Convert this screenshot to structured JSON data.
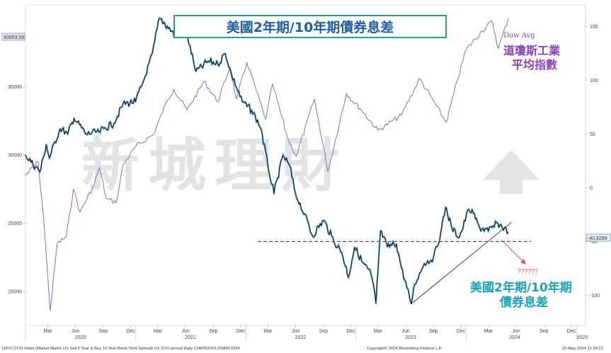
{
  "title": "美國2年期/10年期債券息差",
  "watermark": "新城理財",
  "left_axis_tag": "40003.59",
  "right_axis_tag": "-40.8289",
  "dow_label_en": "Dow Avg",
  "dow_label_cn_1": "道瓊斯工業",
  "dow_label_cn_2": "平均指數",
  "spread_label_1": "美國2年期/10年期",
  "spread_label_2": "債券息差",
  "question_marks": "??????",
  "footer_left": "USYC2Y10 Index (Market Matrix US Sell 2 Year & Buy 10 Year Bond Yield Spread) US 2/10 spread  Daily 12APR2019-20MAY2024",
  "footer_mid": "Copyright© 2024 Bloomberg Finance L.P.",
  "footer_right": "20-May-2024 11:39:21",
  "colors": {
    "dow": "#8e6bb8",
    "spread_body": "#1b1b1b",
    "spread_wick": "#3d9be0",
    "title_border": "#2a9d8f",
    "title_text": "#1f5fa0",
    "annot_cyan": "#1aa3b5",
    "dow_label": "#8a44b8",
    "arrow_red": "#e0506a",
    "trend": "#333333",
    "dash": "#333333"
  },
  "chart_data": {
    "type": "line",
    "x_range": [
      "2020-01-01",
      "2025-01-31"
    ],
    "y_left": {
      "ticks": [
        20000,
        25000,
        30000,
        35000
      ],
      "range": [
        17500,
        41000
      ]
    },
    "y_right": {
      "ticks": [
        -100,
        -50,
        0,
        50,
        100,
        150
      ],
      "range": [
        -128,
        170
      ]
    },
    "x_month_labels": [
      "Mar",
      "Jun",
      "Sep",
      "Dec",
      "Mar",
      "Jun",
      "Sep",
      "Dec",
      "Mar",
      "Jun",
      "Sep",
      "Dec",
      "Mar",
      "Jun",
      "Sep",
      "Dec",
      "Mar",
      "Jun",
      "Sep",
      "Dec"
    ],
    "x_year_labels": [
      "2020",
      "2021",
      "2022",
      "2023",
      "2024",
      "2025"
    ],
    "series": [
      {
        "name": "Dow Avg",
        "axis": "left",
        "points": [
          [
            "2020-01-01",
            28500
          ],
          [
            "2020-02-12",
            29500
          ],
          [
            "2020-03-01",
            25400
          ],
          [
            "2020-03-23",
            18600
          ],
          [
            "2020-04-15",
            23500
          ],
          [
            "2020-05-15",
            24000
          ],
          [
            "2020-06-08",
            27500
          ],
          [
            "2020-06-30",
            25800
          ],
          [
            "2020-08-15",
            27800
          ],
          [
            "2020-09-02",
            29100
          ],
          [
            "2020-09-25",
            26800
          ],
          [
            "2020-10-28",
            26500
          ],
          [
            "2020-11-20",
            29300
          ],
          [
            "2020-12-31",
            30600
          ],
          [
            "2021-02-28",
            31500
          ],
          [
            "2021-04-15",
            34000
          ],
          [
            "2021-05-07",
            34800
          ],
          [
            "2021-06-20",
            33300
          ],
          [
            "2021-08-15",
            35400
          ],
          [
            "2021-09-30",
            33900
          ],
          [
            "2021-11-08",
            36400
          ],
          [
            "2021-12-01",
            34100
          ],
          [
            "2022-01-04",
            36800
          ],
          [
            "2022-03-08",
            32600
          ],
          [
            "2022-03-30",
            35200
          ],
          [
            "2022-05-20",
            31200
          ],
          [
            "2022-06-17",
            29900
          ],
          [
            "2022-08-16",
            34100
          ],
          [
            "2022-09-30",
            28800
          ],
          [
            "2022-11-30",
            34500
          ],
          [
            "2023-01-15",
            33400
          ],
          [
            "2023-03-15",
            31800
          ],
          [
            "2023-05-31",
            32900
          ],
          [
            "2023-07-31",
            35600
          ],
          [
            "2023-10-27",
            32400
          ],
          [
            "2023-12-31",
            37700
          ],
          [
            "2024-02-23",
            39100
          ],
          [
            "2024-03-28",
            39800
          ],
          [
            "2024-04-17",
            37800
          ],
          [
            "2024-05-20",
            40003.59
          ]
        ]
      },
      {
        "name": "US 2/10 spread",
        "axis": "right",
        "points": [
          [
            "2020-01-01",
            30
          ],
          [
            "2020-02-18",
            15
          ],
          [
            "2020-03-10",
            40
          ],
          [
            "2020-03-20",
            28
          ],
          [
            "2020-04-25",
            55
          ],
          [
            "2020-05-20",
            50
          ],
          [
            "2020-06-10",
            65
          ],
          [
            "2020-07-20",
            50
          ],
          [
            "2020-09-01",
            52
          ],
          [
            "2020-10-20",
            60
          ],
          [
            "2020-11-20",
            78
          ],
          [
            "2020-12-31",
            80
          ],
          [
            "2021-01-25",
            98
          ],
          [
            "2021-02-25",
            125
          ],
          [
            "2021-03-20",
            158
          ],
          [
            "2021-04-15",
            150
          ],
          [
            "2021-05-18",
            140
          ],
          [
            "2021-06-15",
            148
          ],
          [
            "2021-07-19",
            108
          ],
          [
            "2021-08-30",
            118
          ],
          [
            "2021-09-30",
            115
          ],
          [
            "2021-10-25",
            125
          ],
          [
            "2021-11-15",
            105
          ],
          [
            "2021-12-20",
            80
          ],
          [
            "2022-01-20",
            72
          ],
          [
            "2022-02-20",
            55
          ],
          [
            "2022-03-15",
            20
          ],
          [
            "2022-04-04",
            -5
          ],
          [
            "2022-05-04",
            30
          ],
          [
            "2022-05-26",
            20
          ],
          [
            "2022-06-14",
            -5
          ],
          [
            "2022-07-15",
            -25
          ],
          [
            "2022-08-10",
            -45
          ],
          [
            "2022-09-15",
            -30
          ],
          [
            "2022-10-20",
            -50
          ],
          [
            "2022-11-15",
            -60
          ],
          [
            "2022-12-07",
            -83
          ],
          [
            "2022-12-27",
            -55
          ],
          [
            "2023-01-20",
            -68
          ],
          [
            "2023-02-20",
            -80
          ],
          [
            "2023-03-08",
            -107
          ],
          [
            "2023-03-23",
            -40
          ],
          [
            "2023-04-15",
            -55
          ],
          [
            "2023-05-15",
            -52
          ],
          [
            "2023-06-01",
            -75
          ],
          [
            "2023-07-03",
            -108
          ],
          [
            "2023-07-15",
            -90
          ],
          [
            "2023-08-15",
            -70
          ],
          [
            "2023-09-15",
            -65
          ],
          [
            "2023-10-09",
            -42
          ],
          [
            "2023-10-25",
            -18
          ],
          [
            "2023-11-15",
            -38
          ],
          [
            "2023-12-10",
            -46
          ],
          [
            "2024-01-10",
            -20
          ],
          [
            "2024-01-25",
            -24
          ],
          [
            "2024-02-15",
            -37
          ],
          [
            "2024-03-15",
            -40
          ],
          [
            "2024-04-15",
            -33
          ],
          [
            "2024-05-20",
            -40.8289
          ]
        ]
      }
    ],
    "dashed_level": -50,
    "trendline": [
      [
        "2023-07-03",
        -108
      ],
      [
        "2024-05-31",
        -32
      ]
    ]
  }
}
